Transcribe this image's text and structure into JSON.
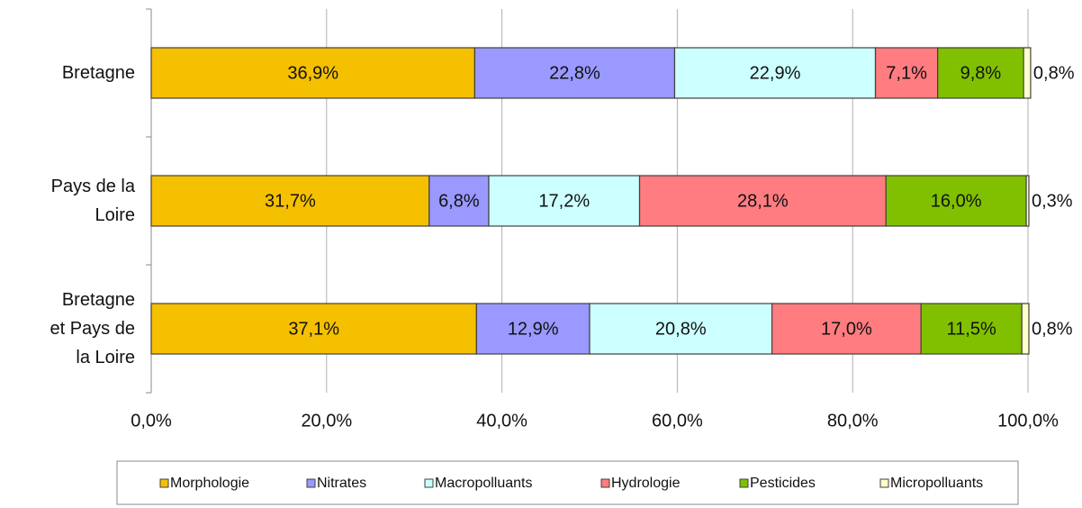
{
  "chart_data": {
    "type": "bar",
    "orientation": "horizontal",
    "stacked": true,
    "categories": [
      "Bretagne",
      "Pays de la\nLoire",
      "Bretagne\net Pays de\nla Loire"
    ],
    "series": [
      {
        "name": "Morphologie",
        "color": "#f5c000",
        "values": [
          36.9,
          31.7,
          37.1
        ],
        "value_labels": [
          "36,9%",
          "31,7%",
          "37,1%"
        ]
      },
      {
        "name": "Nitrates",
        "color": "#9999ff",
        "values": [
          22.8,
          6.8,
          12.9
        ],
        "value_labels": [
          "22,8%",
          "6,8%",
          "12,9%"
        ]
      },
      {
        "name": "Macropolluants",
        "color": "#ccffff",
        "values": [
          22.9,
          17.2,
          20.8
        ],
        "value_labels": [
          "22,9%",
          "17,2%",
          "20,8%"
        ]
      },
      {
        "name": "Hydrologie",
        "color": "#ff7c80",
        "values": [
          7.1,
          28.1,
          17.0
        ],
        "value_labels": [
          "7,1%",
          "28,1%",
          "17,0%"
        ]
      },
      {
        "name": "Pesticides",
        "color": "#80c000",
        "values": [
          9.8,
          16.0,
          11.5
        ],
        "value_labels": [
          "9,8%",
          "16,0%",
          "11,5%"
        ]
      },
      {
        "name": "Micropolluants",
        "color": "#ffffcc",
        "values": [
          0.8,
          0.3,
          0.8
        ],
        "value_labels": [
          "0,8%",
          "0,3%",
          "0,8%"
        ]
      }
    ],
    "xlim": [
      0,
      100
    ],
    "xticks": [
      {
        "value": 0,
        "label": "0,0%"
      },
      {
        "value": 20,
        "label": "20,0%"
      },
      {
        "value": 40,
        "label": "40,0%"
      },
      {
        "value": 60,
        "label": "60,0%"
      },
      {
        "value": 80,
        "label": "80,0%"
      },
      {
        "value": 100,
        "label": "100,0%"
      }
    ],
    "grid": true,
    "legend": "bottom"
  }
}
